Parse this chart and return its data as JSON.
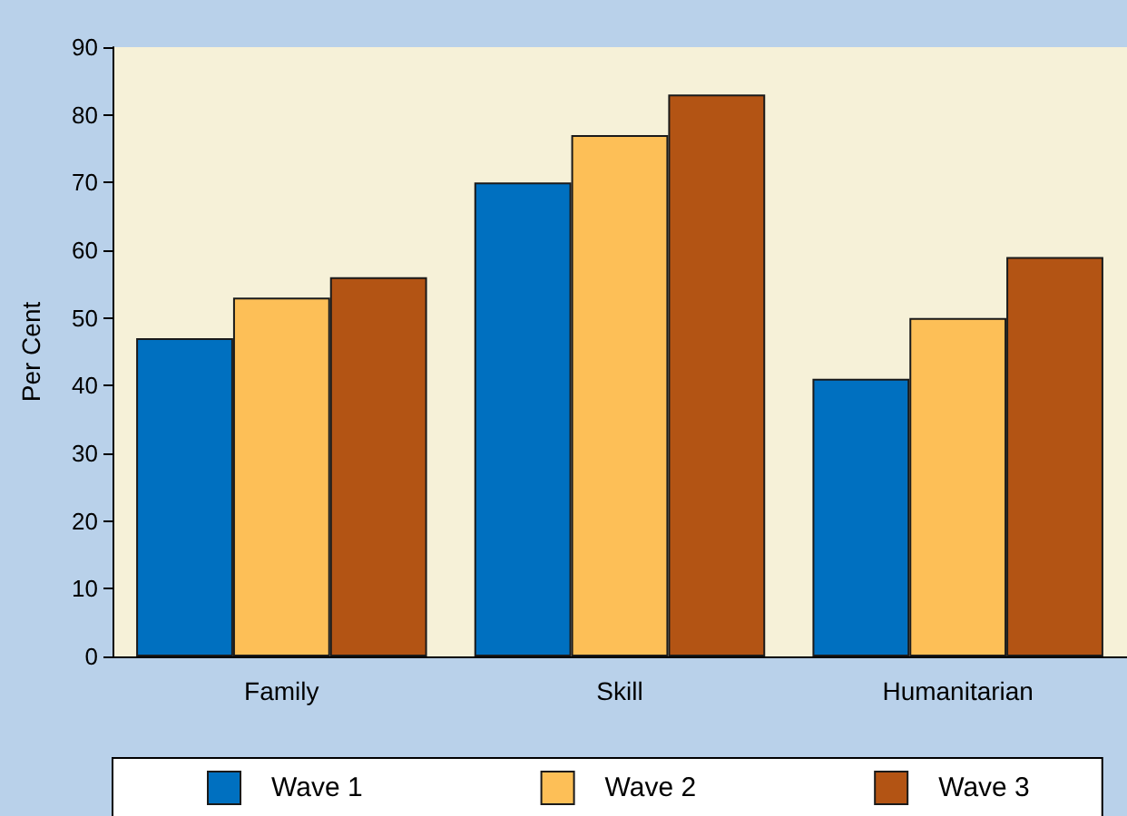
{
  "chart_data": {
    "type": "bar",
    "ylabel": "Per Cent",
    "categories": [
      "Family",
      "Skill",
      "Humanitarian"
    ],
    "series": [
      {
        "name": "Wave 1",
        "color": "#0070c0",
        "values": [
          47,
          70,
          41
        ]
      },
      {
        "name": "Wave 2",
        "color": "#fdbf57",
        "values": [
          53,
          77,
          50
        ]
      },
      {
        "name": "Wave 3",
        "color": "#b35414",
        "values": [
          56,
          83,
          59
        ]
      }
    ],
    "ylim": [
      0,
      90
    ],
    "yticks": [
      0,
      10,
      20,
      30,
      40,
      50,
      60,
      70,
      80,
      90
    ],
    "grid": false,
    "legend": "bottom"
  }
}
